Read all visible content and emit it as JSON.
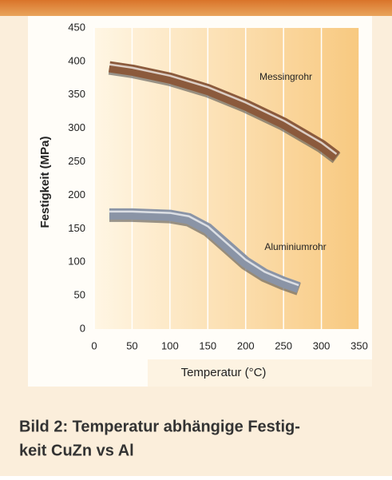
{
  "chart_data": {
    "type": "line",
    "x_label": "Temperatur (°C)",
    "y_label": "Festigkeit (MPa)",
    "xlim": [
      0,
      350
    ],
    "xticks": [
      0,
      50,
      100,
      150,
      200,
      250,
      300,
      350
    ],
    "ylim": [
      0,
      450
    ],
    "yticks": [
      0,
      50,
      100,
      150,
      200,
      250,
      300,
      350,
      400,
      450
    ],
    "grid": true,
    "series": [
      {
        "name": "Messingrohr",
        "color": "#8b5a3c",
        "x": [
          20,
          50,
          100,
          150,
          200,
          250,
          300,
          320
        ],
        "values": [
          392,
          387,
          375,
          358,
          335,
          308,
          275,
          258
        ]
      },
      {
        "name": "Aluminiumrohr",
        "color": "#8a94a6",
        "x": [
          20,
          50,
          100,
          125,
          150,
          175,
          200,
          225,
          250,
          270
        ],
        "values": [
          172,
          172,
          170,
          165,
          150,
          125,
          100,
          82,
          70,
          62
        ]
      }
    ]
  },
  "caption": {
    "lines": [
      "Bild 2: Temperatur abhängige Festig-",
      "keit CuZn vs Al"
    ]
  }
}
